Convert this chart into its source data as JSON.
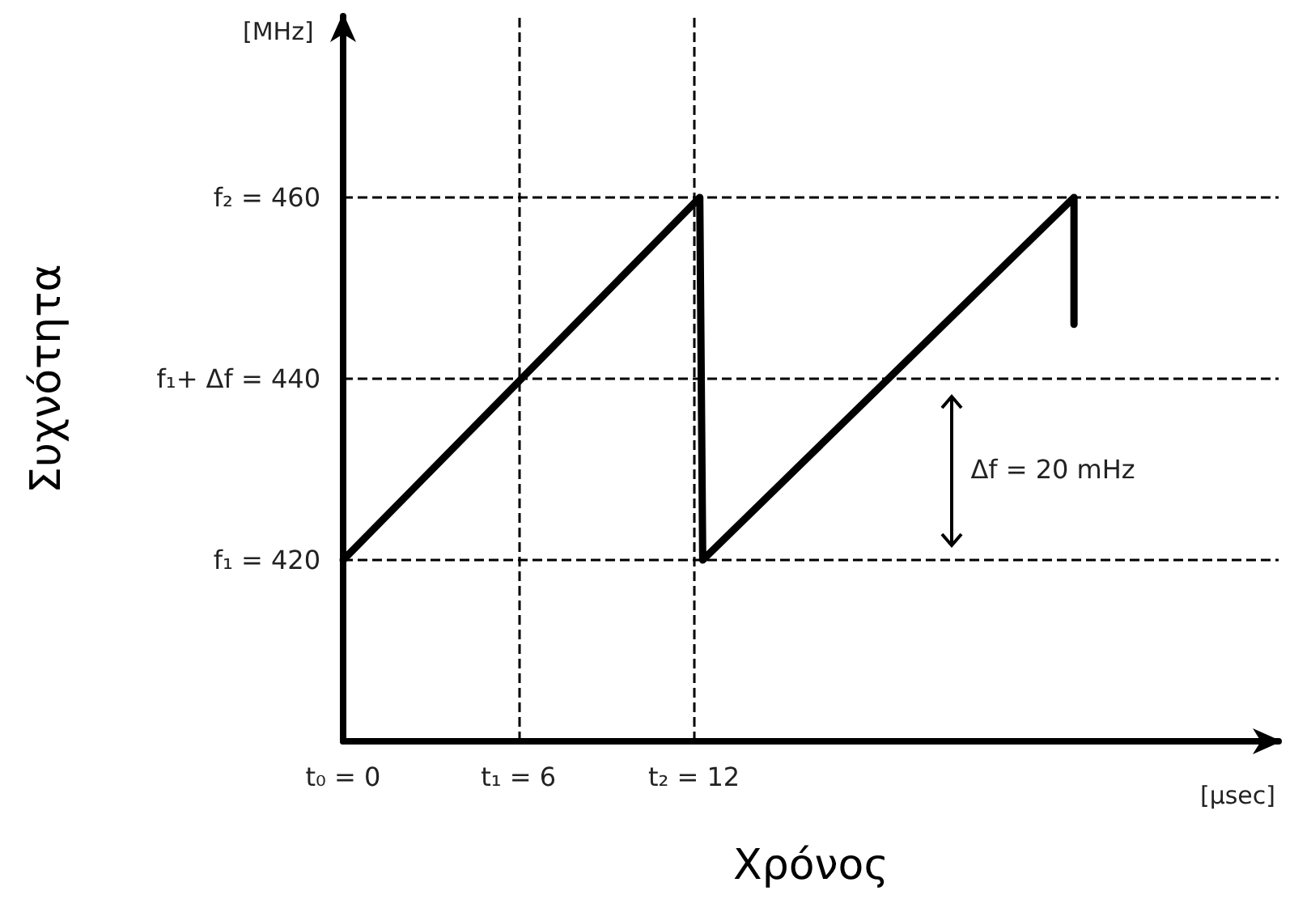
{
  "chart_data": {
    "type": "line",
    "xlabel": "Χρόνος",
    "ylabel": "Συχνότητα",
    "x": [
      0,
      12.2,
      12.3,
      25,
      25
    ],
    "series": [
      {
        "color": "#000000",
        "values": [
          420,
          460,
          420,
          460,
          446
        ]
      }
    ],
    "xlim": [
      0,
      32
    ],
    "ylim": [
      400,
      480
    ],
    "xticks": [
      {
        "value": 0,
        "label": "t₀ = 0"
      },
      {
        "value": 6,
        "label": "t₁ = 6"
      },
      {
        "value": 12,
        "label": "t₂ = 12"
      }
    ],
    "yticks": [
      {
        "value": 420,
        "label": "f₁ = 420"
      },
      {
        "value": 440,
        "label": "f₁+ Δf = 440"
      },
      {
        "value": 460,
        "label": "f₂ = 460"
      }
    ],
    "ref_lines": [
      {
        "axis": "y",
        "value": 420,
        "line_style": "dashed",
        "color": "#000000"
      },
      {
        "axis": "y",
        "value": 440,
        "line_style": "dashed",
        "color": "#000000"
      },
      {
        "axis": "y",
        "value": 460,
        "line_style": "dashed",
        "color": "#000000"
      },
      {
        "axis": "x",
        "value": 6,
        "line_style": "dashed",
        "color": "#000000"
      },
      {
        "axis": "x",
        "value": 12,
        "line_style": "dashed",
        "color": "#000000"
      }
    ],
    "annotations": [
      "[MHz]",
      "[μsec]",
      "Δf = 20 mHz"
    ],
    "grid": false,
    "line_style": "solid"
  }
}
